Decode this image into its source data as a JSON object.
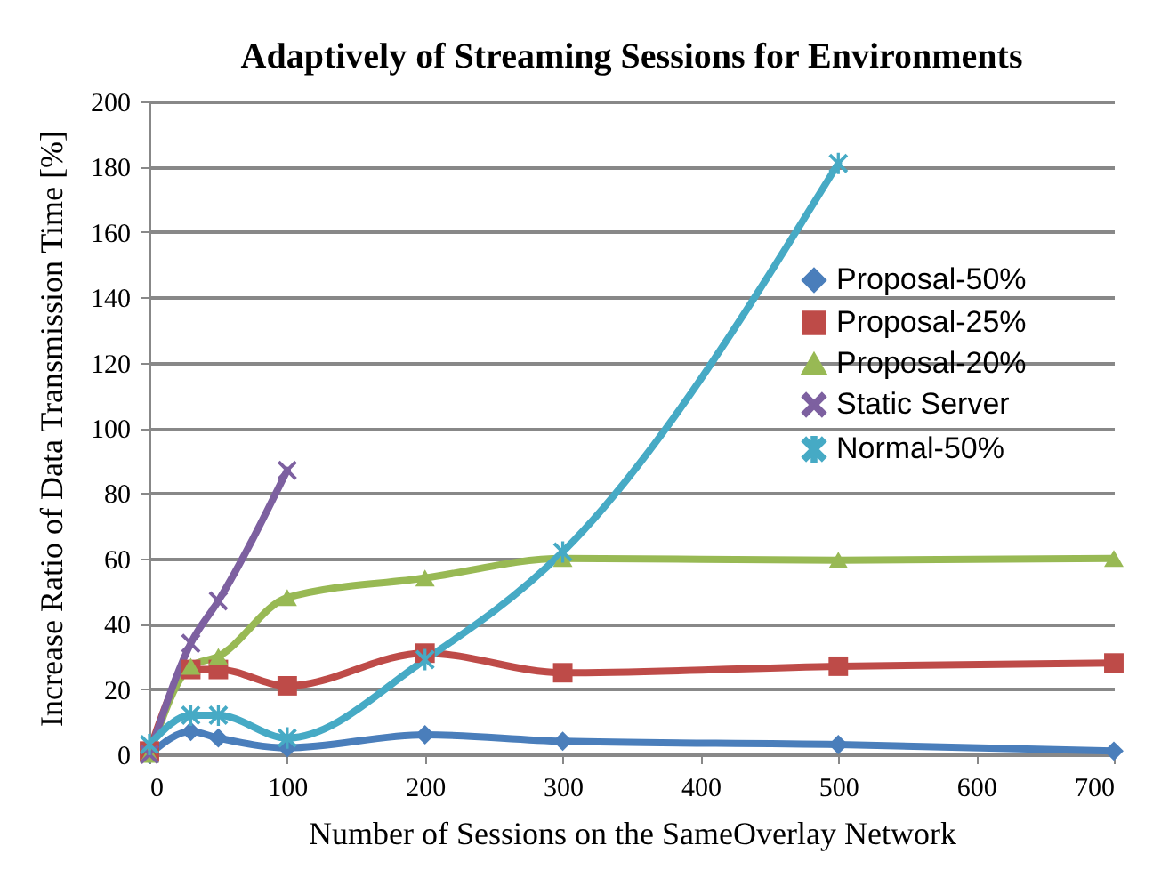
{
  "chart_data": {
    "type": "line",
    "title": "Adaptively  of Streaming Sessions for Environments",
    "xlabel": "Number of Sessions on the SameOverlay Network",
    "ylabel": "Increase Ratio  of Data Transmission Time [%]",
    "x": [
      0,
      30,
      50,
      100,
      200,
      300,
      500,
      700
    ],
    "series": [
      {
        "name": "Proposal-50%",
        "color": "#4a7ebb",
        "marker": "diamond",
        "values": [
          0,
          7,
          5,
          2,
          6,
          4,
          3,
          1
        ]
      },
      {
        "name": "Proposal-25%",
        "color": "#be4b48",
        "marker": "square",
        "values": [
          1,
          26,
          26,
          21,
          31,
          25,
          27,
          28
        ]
      },
      {
        "name": "Proposal-20%",
        "color": "#98b954",
        "marker": "triangle",
        "values": [
          0,
          27,
          30,
          48,
          54,
          60,
          59.5,
          60
        ]
      },
      {
        "name": "Static Server",
        "color": "#7d60a0",
        "marker": "cross",
        "values": [
          0,
          34,
          47,
          87,
          null,
          null,
          null,
          null
        ]
      },
      {
        "name": "Normal-50%",
        "color": "#46aac5",
        "marker": "star",
        "values": [
          3,
          12,
          12,
          5,
          29,
          62,
          181,
          null
        ]
      }
    ],
    "xlim": [
      0,
      700
    ],
    "xticks": [
      0,
      100,
      200,
      300,
      400,
      500,
      600,
      700
    ],
    "ylim": [
      0,
      200
    ],
    "yticks": [
      0,
      20,
      40,
      60,
      80,
      100,
      120,
      140,
      160,
      180,
      200
    ],
    "grid": "y",
    "legend": "right"
  }
}
